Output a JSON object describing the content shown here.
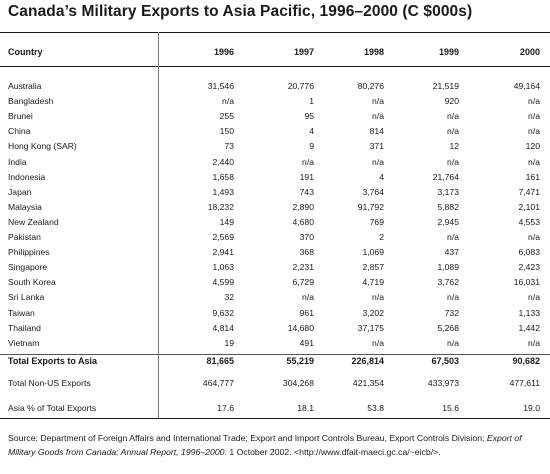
{
  "title": "Canada’s Military Exports to Asia Pacific, 1996–2000 (C $000s)",
  "columns": [
    "Country",
    "1996",
    "1997",
    "1998",
    "1999",
    "2000"
  ],
  "rows": [
    {
      "country": "Australia",
      "values": [
        "31,546",
        "20,776",
        "80,276",
        "21,519",
        "49,164"
      ]
    },
    {
      "country": "Bangladesh",
      "values": [
        "n/a",
        "1",
        "n/a",
        "920",
        "n/a"
      ]
    },
    {
      "country": "Brunei",
      "values": [
        "255",
        "95",
        "n/a",
        "n/a",
        "n/a"
      ]
    },
    {
      "country": "China",
      "values": [
        "150",
        "4",
        "814",
        "n/a",
        "n/a"
      ]
    },
    {
      "country": "Hong Kong (SAR)",
      "values": [
        "73",
        "9",
        "371",
        "12",
        "120"
      ]
    },
    {
      "country": "India",
      "values": [
        "2,440",
        "n/a",
        "n/a",
        "n/a",
        "n/a"
      ]
    },
    {
      "country": "Indonesia",
      "values": [
        "1,658",
        "191",
        "4",
        "21,764",
        "161"
      ]
    },
    {
      "country": "Japan",
      "values": [
        "1,493",
        "743",
        "3,764",
        "3,173",
        "7,471"
      ]
    },
    {
      "country": "Malaysia",
      "values": [
        "18,232",
        "2,890",
        "91,792",
        "5,882",
        "2,101"
      ]
    },
    {
      "country": "New Zealand",
      "values": [
        "149",
        "4,680",
        "769",
        "2,945",
        "4,553"
      ]
    },
    {
      "country": "Pakistan",
      "values": [
        "2,569",
        "370",
        "2",
        "n/a",
        "n/a"
      ]
    },
    {
      "country": "Philippines",
      "values": [
        "2,941",
        "368",
        "1,069",
        "437",
        "6,083"
      ]
    },
    {
      "country": "Singapore",
      "values": [
        "1,063",
        "2,231",
        "2,857",
        "1,089",
        "2,423"
      ]
    },
    {
      "country": "South Korea",
      "values": [
        "4,599",
        "6,729",
        "4,719",
        "3,762",
        "16,031"
      ]
    },
    {
      "country": "Sri Lanka",
      "values": [
        "32",
        "n/a",
        "n/a",
        "n/a",
        "n/a"
      ]
    },
    {
      "country": "Taiwan",
      "values": [
        "9,632",
        "961",
        "3,202",
        "732",
        "1,133"
      ]
    },
    {
      "country": "Thailand",
      "values": [
        "4,814",
        "14,680",
        "37,175",
        "5,268",
        "1,442"
      ]
    },
    {
      "country": "Vietnam",
      "values": [
        "19",
        "491",
        "n/a",
        "n/a",
        "n/a"
      ]
    }
  ],
  "total_row": {
    "country": "Total Exports to Asia",
    "values": [
      "81,665",
      "55,219",
      "226,814",
      "67,503",
      "90,682"
    ]
  },
  "non_us_row": {
    "country": "Total Non-US Exports",
    "values": [
      "464,777",
      "304,268",
      "421,354",
      "433,973",
      "477,611"
    ]
  },
  "percent_row": {
    "country": "Asia % of Total Exports",
    "values": [
      "17.6",
      "18.1",
      "53.8",
      "15.6",
      "19.0"
    ]
  },
  "source": {
    "prefix": "Source:  Department of Foreign Affairs and International Trade; Export and Import Controls Bureau, Export Controls Division; ",
    "italic": "Export of Military Goods from Canada: Annual Report, 1996–2000",
    "suffix": ". 1 October 2002. <http://www.dfait-maeci.gc.ca/~eicb/>."
  }
}
